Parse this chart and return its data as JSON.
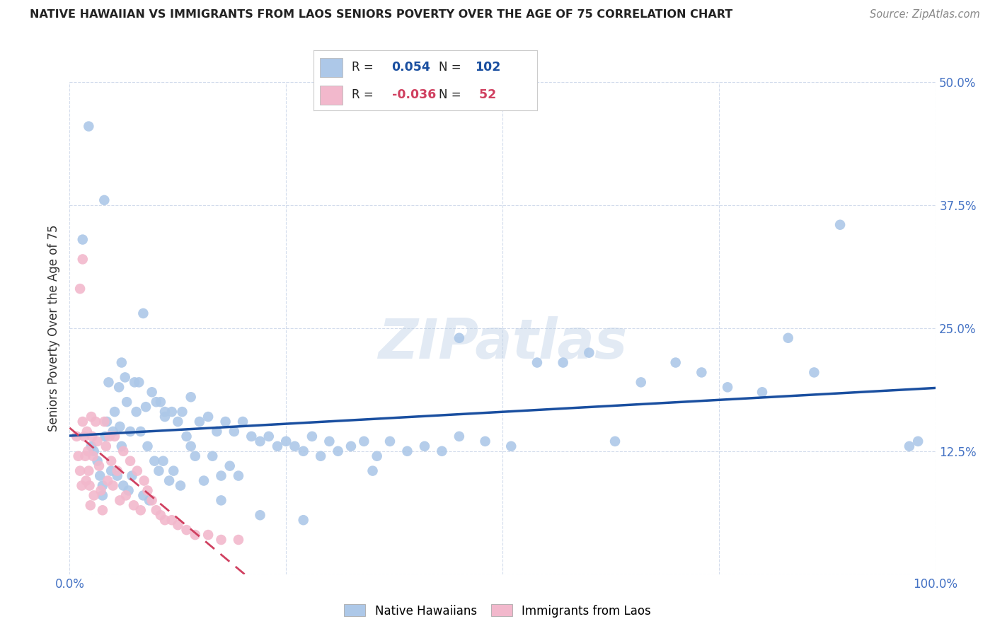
{
  "title": "NATIVE HAWAIIAN VS IMMIGRANTS FROM LAOS SENIORS POVERTY OVER THE AGE OF 75 CORRELATION CHART",
  "source": "Source: ZipAtlas.com",
  "ylabel": "Seniors Poverty Over the Age of 75",
  "xlim": [
    0.0,
    1.0
  ],
  "ylim": [
    0.0,
    0.5
  ],
  "xticks": [
    0.0,
    0.25,
    0.5,
    0.75,
    1.0
  ],
  "xticklabels": [
    "0.0%",
    "",
    "",
    "",
    "100.0%"
  ],
  "yticks": [
    0.0,
    0.125,
    0.25,
    0.375,
    0.5
  ],
  "yticklabels": [
    "",
    "12.5%",
    "25.0%",
    "37.5%",
    "50.0%"
  ],
  "blue_R": 0.054,
  "blue_N": 102,
  "pink_R": -0.036,
  "pink_N": 52,
  "blue_color": "#adc8e8",
  "pink_color": "#f2b8cc",
  "blue_line_color": "#1a4fa0",
  "pink_line_color": "#d04060",
  "background_color": "#ffffff",
  "grid_color": "#c8d4e8",
  "title_color": "#222222",
  "axis_color": "#4472c4",
  "watermark": "ZIPatlas",
  "blue_x": [
    0.022,
    0.015,
    0.025,
    0.028,
    0.032,
    0.035,
    0.038,
    0.038,
    0.041,
    0.043,
    0.045,
    0.048,
    0.05,
    0.052,
    0.055,
    0.057,
    0.058,
    0.06,
    0.062,
    0.064,
    0.066,
    0.068,
    0.07,
    0.072,
    0.075,
    0.077,
    0.08,
    0.082,
    0.085,
    0.088,
    0.09,
    0.092,
    0.095,
    0.098,
    0.1,
    0.103,
    0.105,
    0.108,
    0.11,
    0.115,
    0.118,
    0.12,
    0.125,
    0.128,
    0.13,
    0.135,
    0.14,
    0.145,
    0.15,
    0.155,
    0.16,
    0.165,
    0.17,
    0.175,
    0.18,
    0.185,
    0.19,
    0.195,
    0.2,
    0.21,
    0.22,
    0.23,
    0.24,
    0.25,
    0.26,
    0.27,
    0.28,
    0.29,
    0.3,
    0.31,
    0.325,
    0.34,
    0.355,
    0.37,
    0.39,
    0.41,
    0.43,
    0.45,
    0.48,
    0.51,
    0.54,
    0.57,
    0.6,
    0.63,
    0.66,
    0.7,
    0.73,
    0.76,
    0.8,
    0.83,
    0.86,
    0.89,
    0.04,
    0.06,
    0.085,
    0.11,
    0.14,
    0.175,
    0.22,
    0.27,
    0.35,
    0.45,
    0.97,
    0.98
  ],
  "blue_y": [
    0.455,
    0.34,
    0.13,
    0.125,
    0.115,
    0.1,
    0.09,
    0.08,
    0.14,
    0.155,
    0.195,
    0.105,
    0.145,
    0.165,
    0.1,
    0.19,
    0.15,
    0.13,
    0.09,
    0.2,
    0.175,
    0.085,
    0.145,
    0.1,
    0.195,
    0.165,
    0.195,
    0.145,
    0.08,
    0.17,
    0.13,
    0.075,
    0.185,
    0.115,
    0.175,
    0.105,
    0.175,
    0.115,
    0.16,
    0.095,
    0.165,
    0.105,
    0.155,
    0.09,
    0.165,
    0.14,
    0.18,
    0.12,
    0.155,
    0.095,
    0.16,
    0.12,
    0.145,
    0.1,
    0.155,
    0.11,
    0.145,
    0.1,
    0.155,
    0.14,
    0.135,
    0.14,
    0.13,
    0.135,
    0.13,
    0.125,
    0.14,
    0.12,
    0.135,
    0.125,
    0.13,
    0.135,
    0.12,
    0.135,
    0.125,
    0.13,
    0.125,
    0.14,
    0.135,
    0.13,
    0.215,
    0.215,
    0.225,
    0.135,
    0.195,
    0.215,
    0.205,
    0.19,
    0.185,
    0.24,
    0.205,
    0.355,
    0.38,
    0.215,
    0.265,
    0.165,
    0.13,
    0.075,
    0.06,
    0.055,
    0.105,
    0.24,
    0.13,
    0.135
  ],
  "pink_x": [
    0.008,
    0.01,
    0.012,
    0.014,
    0.015,
    0.017,
    0.018,
    0.019,
    0.02,
    0.021,
    0.022,
    0.023,
    0.024,
    0.025,
    0.026,
    0.027,
    0.028,
    0.03,
    0.032,
    0.034,
    0.036,
    0.038,
    0.04,
    0.042,
    0.044,
    0.046,
    0.048,
    0.05,
    0.052,
    0.055,
    0.058,
    0.062,
    0.065,
    0.07,
    0.074,
    0.078,
    0.082,
    0.086,
    0.09,
    0.095,
    0.1,
    0.105,
    0.11,
    0.118,
    0.125,
    0.135,
    0.145,
    0.16,
    0.175,
    0.195,
    0.012,
    0.015
  ],
  "pink_y": [
    0.14,
    0.12,
    0.105,
    0.09,
    0.155,
    0.14,
    0.12,
    0.095,
    0.145,
    0.125,
    0.105,
    0.09,
    0.07,
    0.16,
    0.14,
    0.12,
    0.08,
    0.155,
    0.135,
    0.11,
    0.085,
    0.065,
    0.155,
    0.13,
    0.095,
    0.14,
    0.115,
    0.09,
    0.14,
    0.105,
    0.075,
    0.125,
    0.08,
    0.115,
    0.07,
    0.105,
    0.065,
    0.095,
    0.085,
    0.075,
    0.065,
    0.06,
    0.055,
    0.055,
    0.05,
    0.045,
    0.04,
    0.04,
    0.035,
    0.035,
    0.29,
    0.32
  ]
}
